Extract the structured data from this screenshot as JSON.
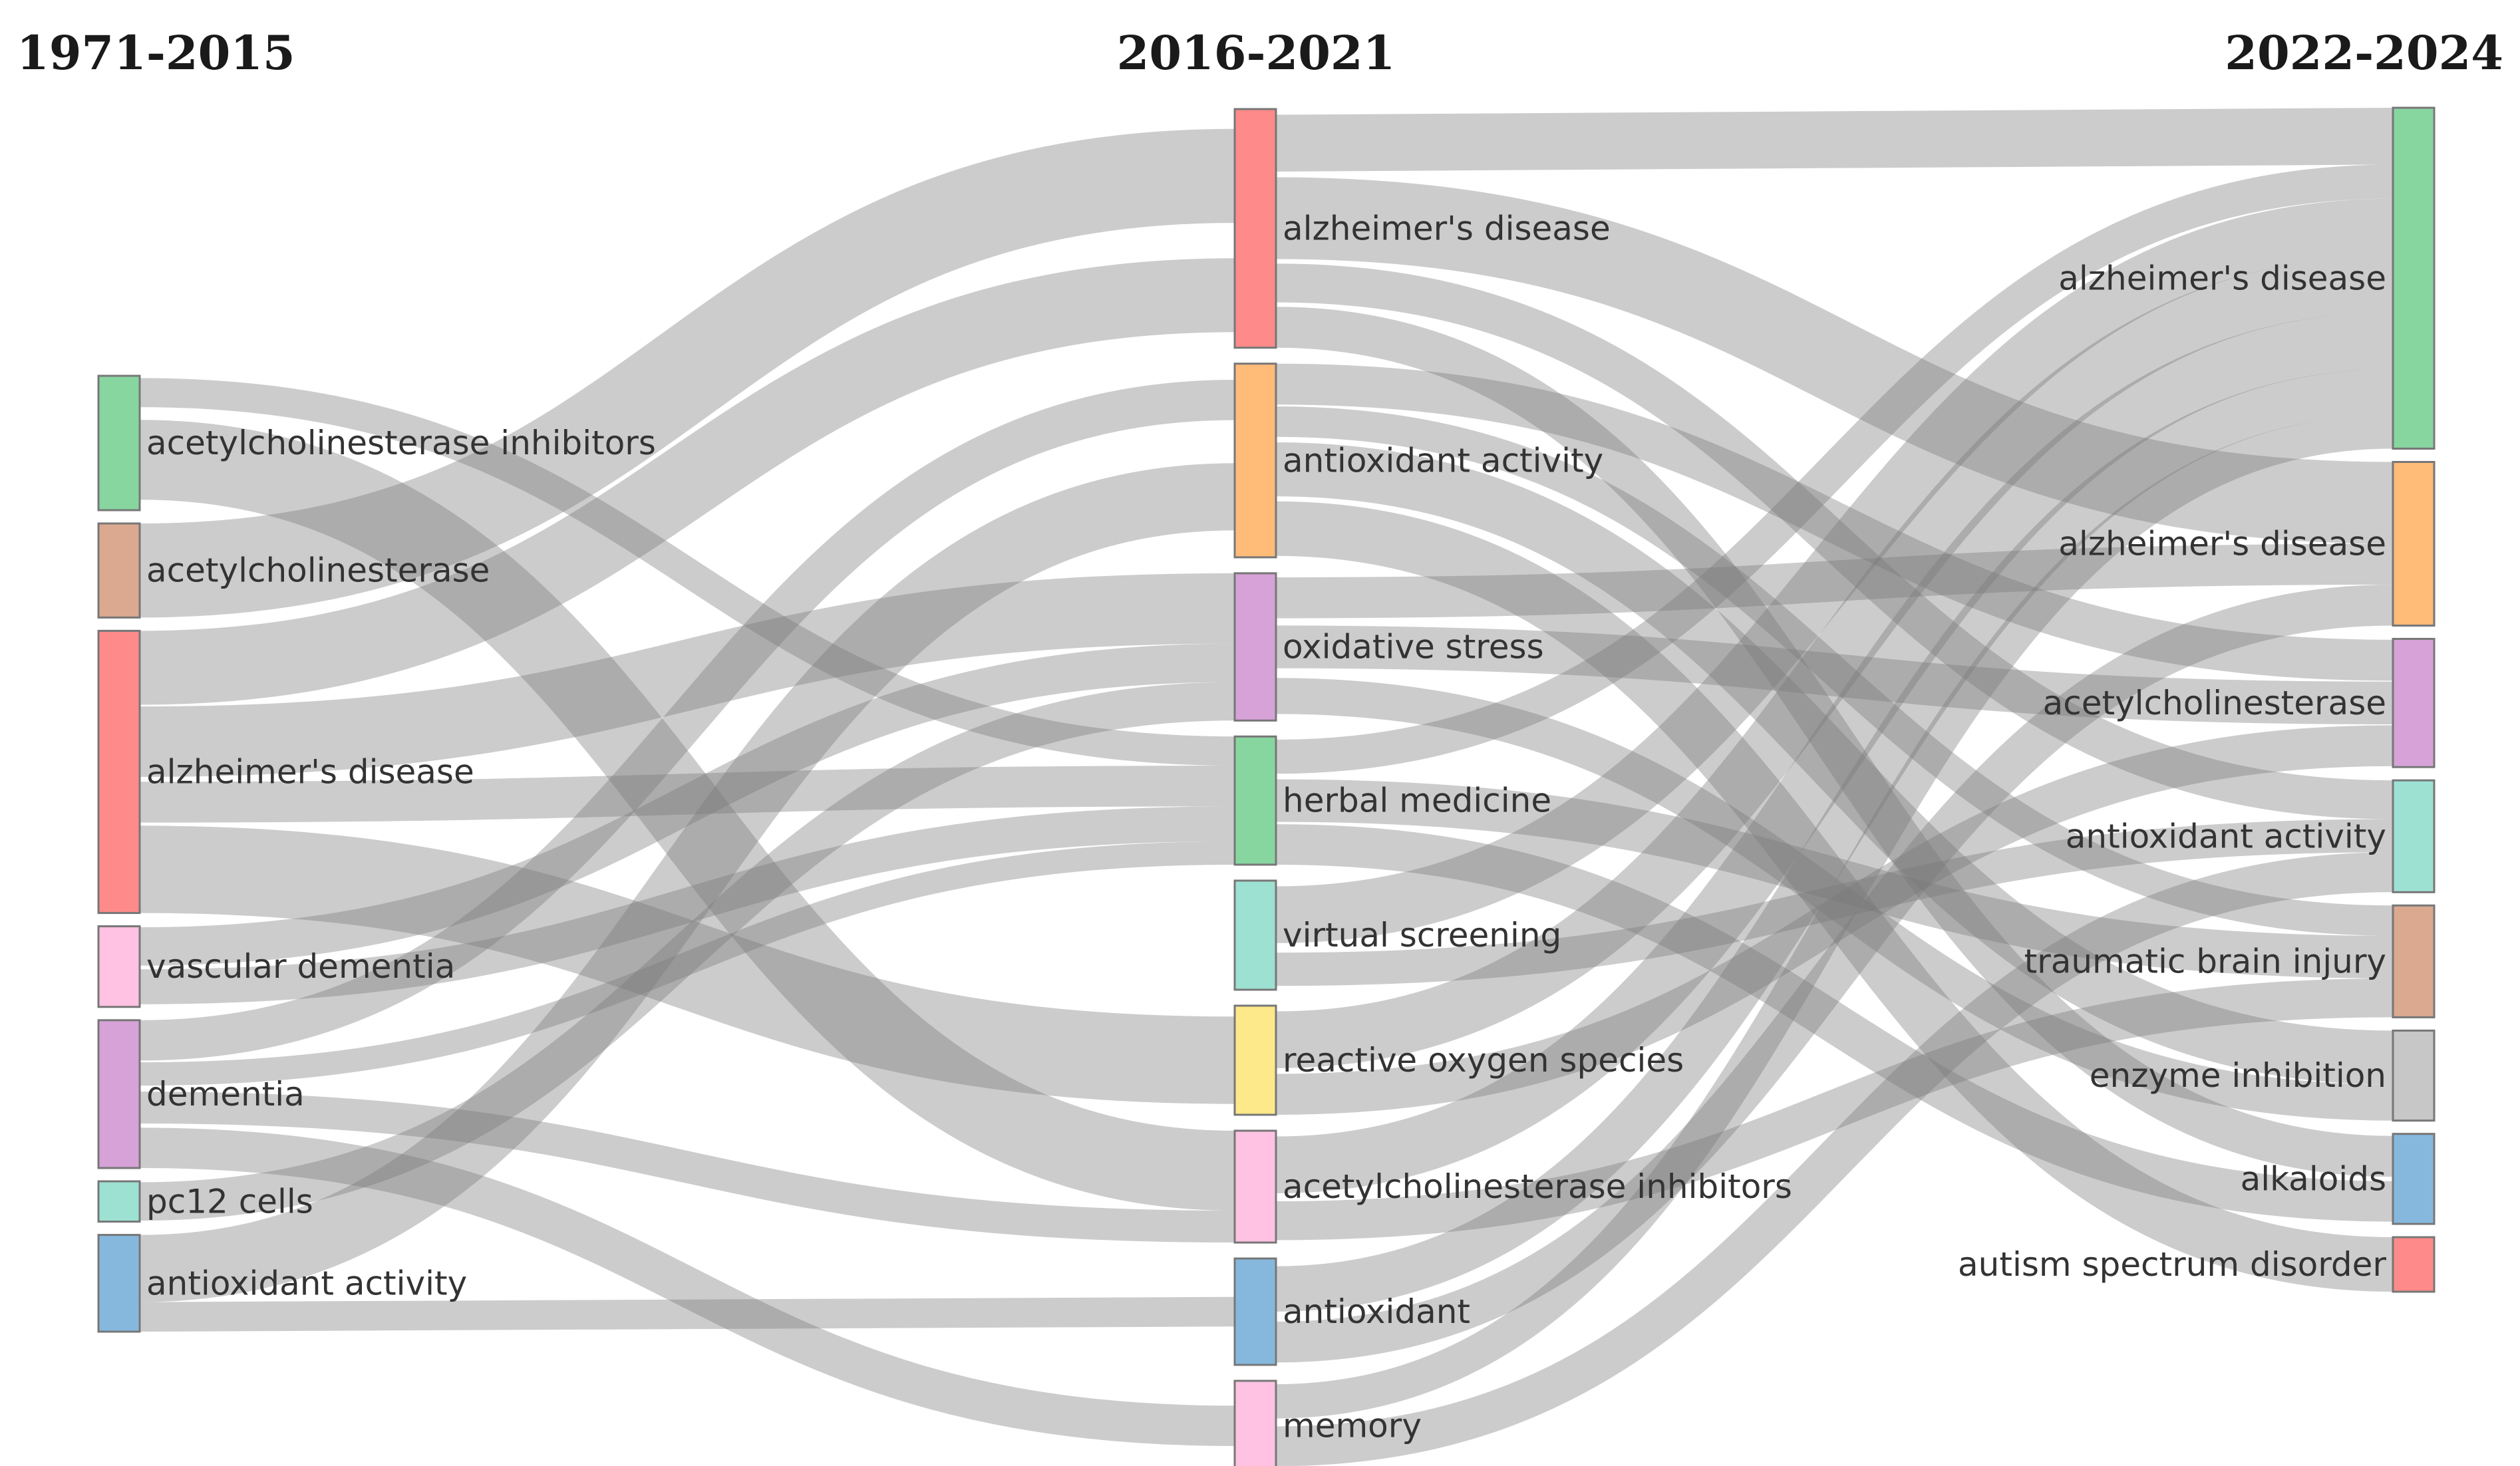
{
  "columns": [
    {
      "title": "1971-2015"
    },
    {
      "title": "2016-2021"
    },
    {
      "title": "2022-2024"
    }
  ],
  "nodes": [
    {
      "id": "a0",
      "col": 0,
      "label": "acetylcholinesterase inhibitors",
      "color": "#87d6a0",
      "weight": 1.0
    },
    {
      "id": "a1",
      "col": 0,
      "label": "acetylcholinesterase",
      "color": "#dba98f",
      "weight": 0.7
    },
    {
      "id": "a2",
      "col": 0,
      "label": "alzheimer's disease",
      "color": "#ff8a8a",
      "weight": 2.1
    },
    {
      "id": "a3",
      "col": 0,
      "label": "vascular dementia",
      "color": "#ffc2e2",
      "weight": 0.6
    },
    {
      "id": "a4",
      "col": 0,
      "label": "dementia",
      "color": "#d7a2d8",
      "weight": 1.1
    },
    {
      "id": "a5",
      "col": 0,
      "label": "pc12 cells",
      "color": "#9de1d2",
      "weight": 0.3
    },
    {
      "id": "a6",
      "col": 0,
      "label": "antioxidant activity",
      "color": "#86b8de",
      "weight": 0.72
    },
    {
      "id": "b0",
      "col": 1,
      "label": "alzheimer's disease",
      "color": "#ff8a8a",
      "weight": 1.75
    },
    {
      "id": "b1",
      "col": 1,
      "label": "antioxidant activity",
      "color": "#ffbb78",
      "weight": 1.42
    },
    {
      "id": "b2",
      "col": 1,
      "label": "oxidative stress",
      "color": "#d7a2d8",
      "weight": 1.08
    },
    {
      "id": "b3",
      "col": 1,
      "label": "herbal medicine",
      "color": "#87d6a0",
      "weight": 0.94
    },
    {
      "id": "b4",
      "col": 1,
      "label": "virtual screening",
      "color": "#9de1d2",
      "weight": 0.8
    },
    {
      "id": "b5",
      "col": 1,
      "label": "reactive oxygen species",
      "color": "#fde88a",
      "weight": 0.8
    },
    {
      "id": "b6",
      "col": 1,
      "label": "acetylcholinesterase inhibitors",
      "color": "#ffc2e2",
      "weight": 0.82
    },
    {
      "id": "b7",
      "col": 1,
      "label": "antioxidant",
      "color": "#86b8de",
      "weight": 0.78
    },
    {
      "id": "b8",
      "col": 1,
      "label": "memory",
      "color": "#ffc2e2",
      "weight": 0.66
    },
    {
      "id": "c0",
      "col": 2,
      "label": "alzheimer's disease",
      "color": "#87d6a0",
      "weight": 2.5
    },
    {
      "id": "c1",
      "col": 2,
      "label": "alzheimer's disease",
      "color": "#ffbb78",
      "weight": 1.2
    },
    {
      "id": "c2",
      "col": 2,
      "label": "acetylcholinesterase",
      "color": "#d7a2d8",
      "weight": 0.94
    },
    {
      "id": "c3",
      "col": 2,
      "label": "antioxidant activity",
      "color": "#9de1d2",
      "weight": 0.82
    },
    {
      "id": "c4",
      "col": 2,
      "label": "traumatic brain injury",
      "color": "#dba98f",
      "weight": 0.82
    },
    {
      "id": "c5",
      "col": 2,
      "label": "enzyme inhibition",
      "color": "#c7c7c7",
      "weight": 0.66
    },
    {
      "id": "c6",
      "col": 2,
      "label": "alkaloids",
      "color": "#86b8de",
      "weight": 0.66
    },
    {
      "id": "c7",
      "col": 2,
      "label": "autism spectrum disorder",
      "color": "#ff8a8a",
      "weight": 0.4
    }
  ],
  "links": [
    {
      "source": "a0",
      "target": "b3",
      "value": 0.25
    },
    {
      "source": "a0",
      "target": "b6",
      "value": 0.75
    },
    {
      "source": "a1",
      "target": "b0",
      "value": 0.7
    },
    {
      "source": "a2",
      "target": "b0",
      "value": 0.55
    },
    {
      "source": "a2",
      "target": "b2",
      "value": 0.55
    },
    {
      "source": "a2",
      "target": "b3",
      "value": 0.35
    },
    {
      "source": "a2",
      "target": "b5",
      "value": 0.65
    },
    {
      "source": "a3",
      "target": "b2",
      "value": 0.3
    },
    {
      "source": "a3",
      "target": "b3",
      "value": 0.3
    },
    {
      "source": "a4",
      "target": "b1",
      "value": 0.3
    },
    {
      "source": "a4",
      "target": "b3",
      "value": 0.2
    },
    {
      "source": "a4",
      "target": "b6",
      "value": 0.3
    },
    {
      "source": "a4",
      "target": "b8",
      "value": 0.3
    },
    {
      "source": "a5",
      "target": "b2",
      "value": 0.3
    },
    {
      "source": "a6",
      "target": "b1",
      "value": 0.5
    },
    {
      "source": "a6",
      "target": "b7",
      "value": 0.22
    },
    {
      "source": "b0",
      "target": "c0",
      "value": 0.5
    },
    {
      "source": "b0",
      "target": "c1",
      "value": 0.6
    },
    {
      "source": "b0",
      "target": "c3",
      "value": 0.35
    },
    {
      "source": "b0",
      "target": "c6",
      "value": 0.3
    },
    {
      "source": "b1",
      "target": "c2",
      "value": 0.3
    },
    {
      "source": "b1",
      "target": "c4",
      "value": 0.25
    },
    {
      "source": "b1",
      "target": "c5",
      "value": 0.45
    },
    {
      "source": "b1",
      "target": "c7",
      "value": 0.42
    },
    {
      "source": "b2",
      "target": "c1",
      "value": 0.3
    },
    {
      "source": "b2",
      "target": "c2",
      "value": 0.3
    },
    {
      "source": "b2",
      "target": "c5",
      "value": 0.3
    },
    {
      "source": "b3",
      "target": "c0",
      "value": 0.3
    },
    {
      "source": "b3",
      "target": "c4",
      "value": 0.35
    },
    {
      "source": "b3",
      "target": "c6",
      "value": 0.3
    },
    {
      "source": "b4",
      "target": "c0",
      "value": 0.5
    },
    {
      "source": "b4",
      "target": "c3",
      "value": 0.3
    },
    {
      "source": "b5",
      "target": "c0",
      "value": 0.5
    },
    {
      "source": "b5",
      "target": "c2",
      "value": 0.3
    },
    {
      "source": "b6",
      "target": "c0",
      "value": 0.5
    },
    {
      "source": "b6",
      "target": "c4",
      "value": 0.32
    },
    {
      "source": "b7",
      "target": "c0",
      "value": 0.4
    },
    {
      "source": "b7",
      "target": "c1",
      "value": 0.3
    },
    {
      "source": "b8",
      "target": "c0",
      "value": 0.3
    },
    {
      "source": "b8",
      "target": "c3",
      "value": 0.36
    }
  ]
}
